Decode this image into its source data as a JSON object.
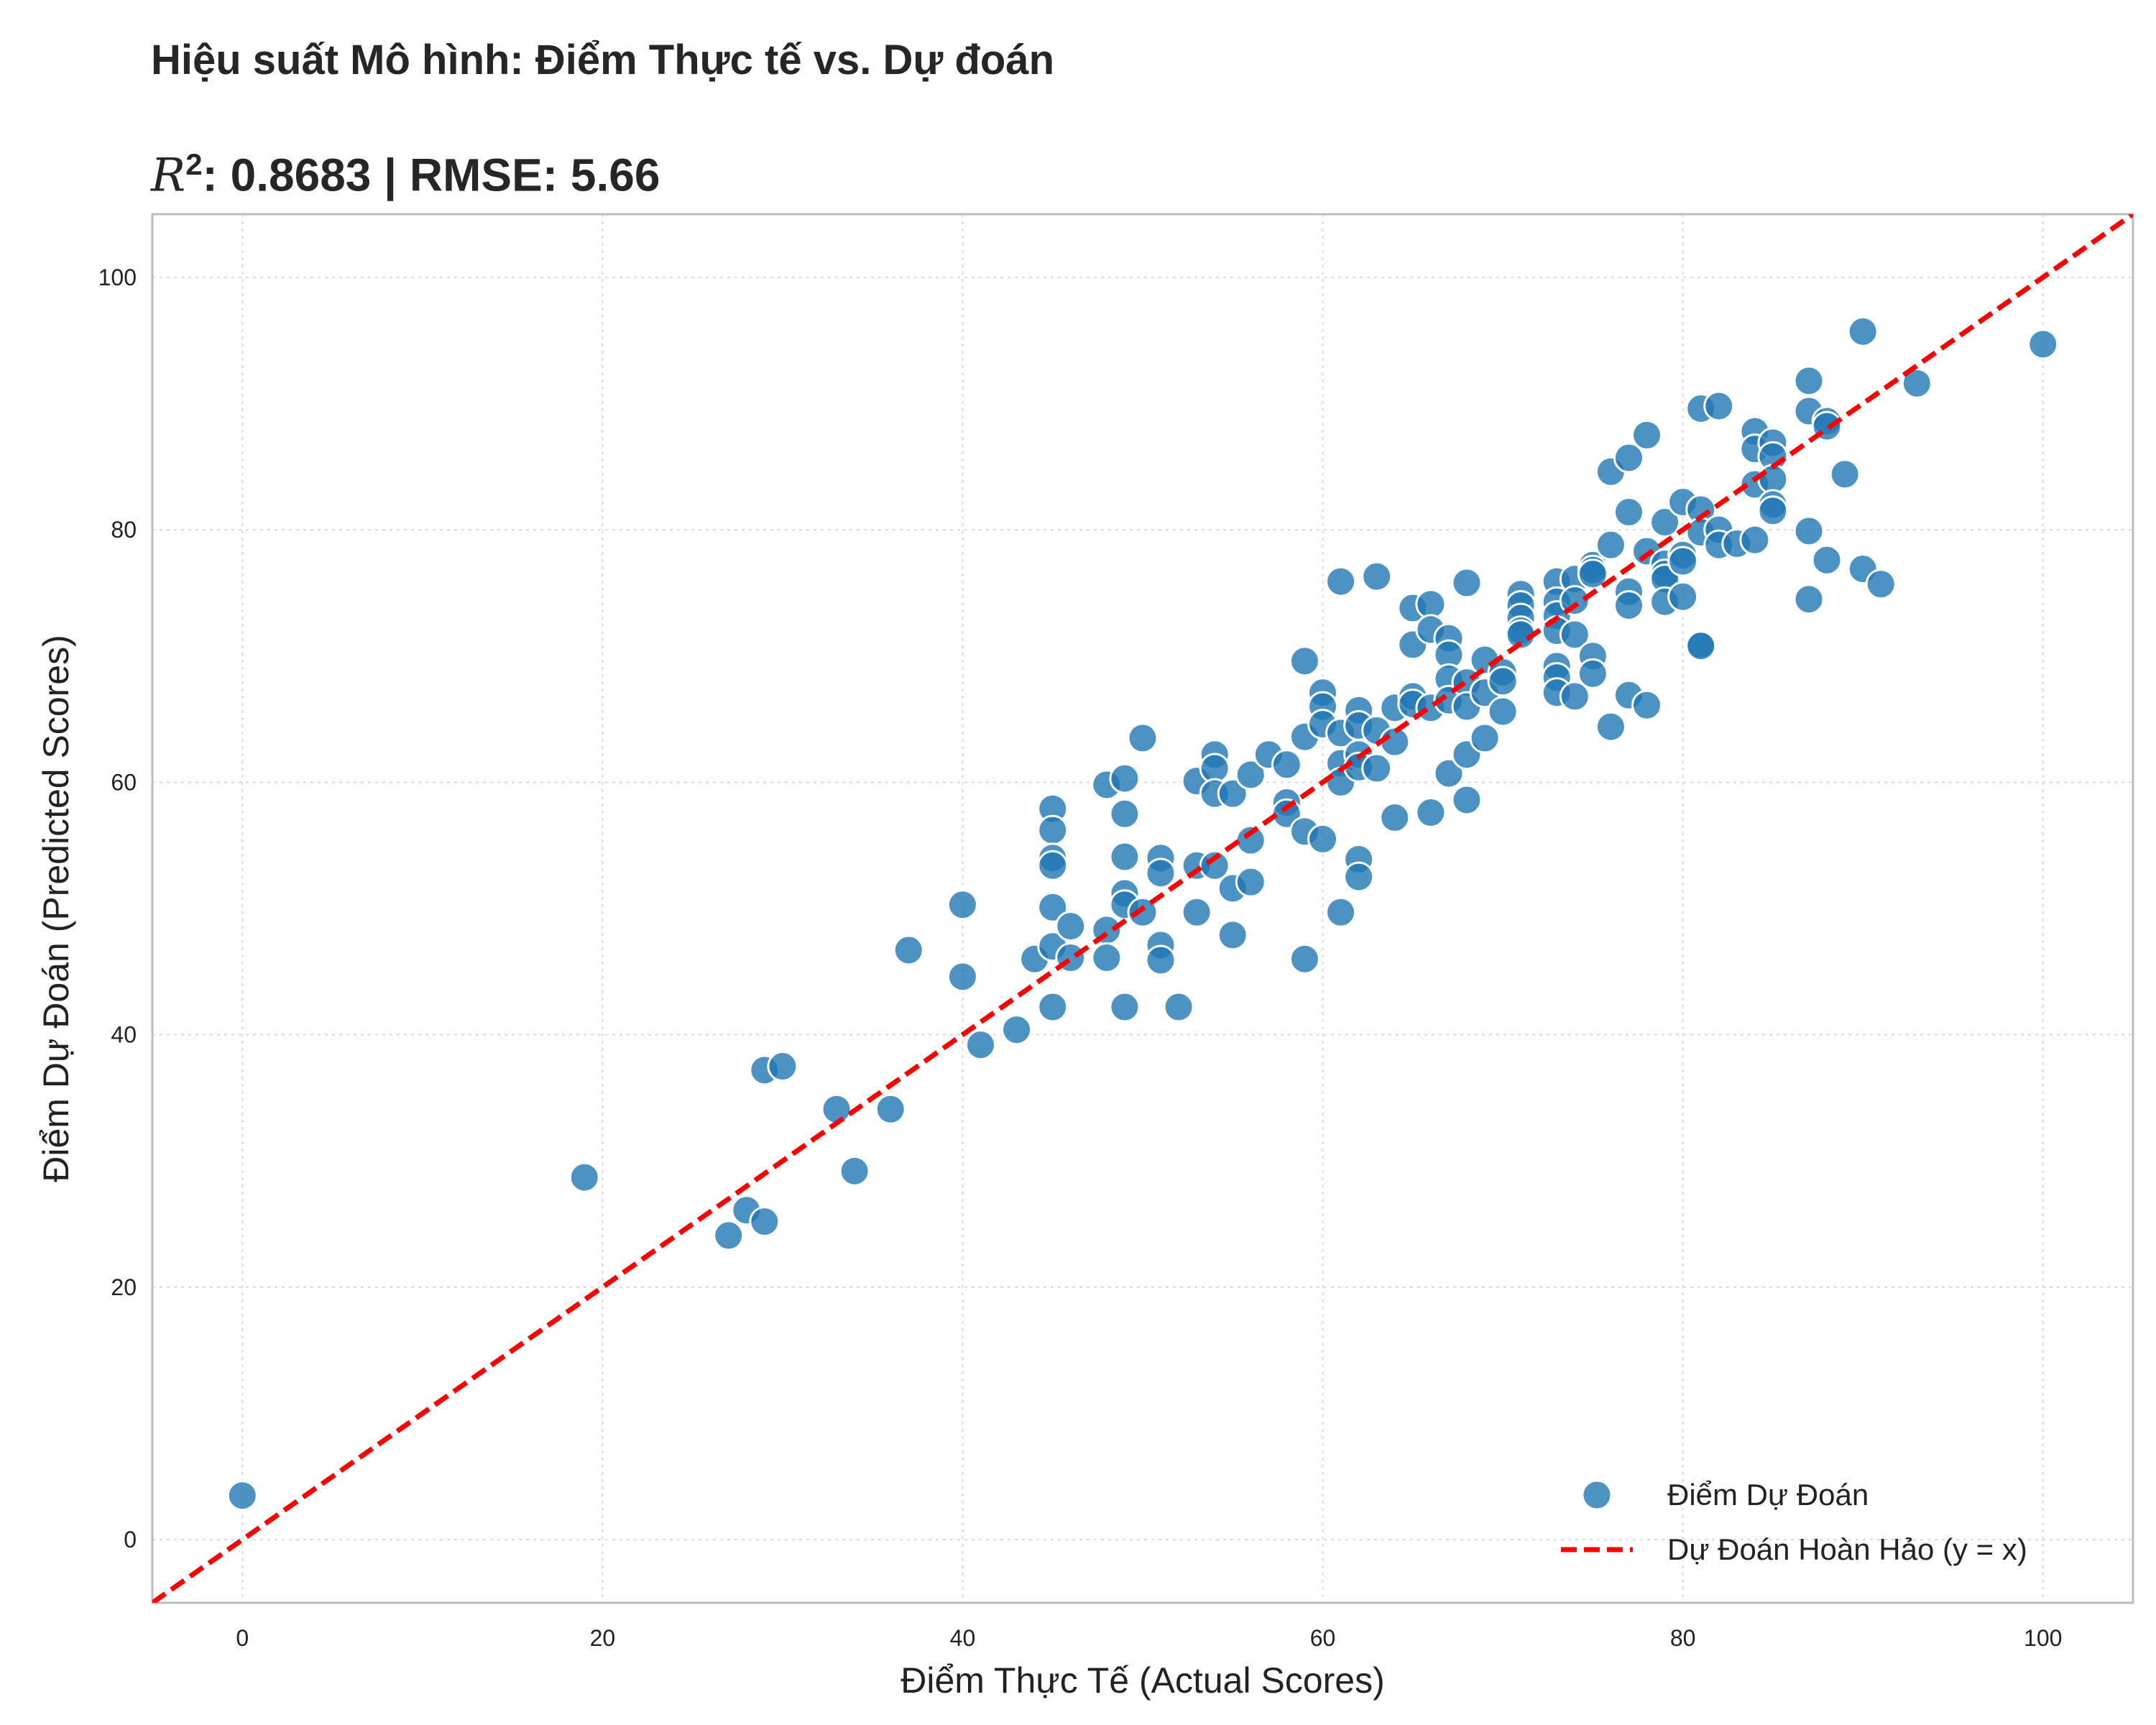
{
  "chart_data": {
    "type": "scatter",
    "suptitle": "Hiệu suất Mô hình: Điểm Thực tế vs. Dự đoán",
    "title_r2_symbol": "R",
    "title_r2_exp": "2",
    "title_rest": ": 0.8683 | RMSE: 5.66",
    "xlabel": "Điểm Thực Tế (Actual Scores)",
    "ylabel": "Điểm Dự Đoán (Predicted Scores)",
    "xlim": [
      -5,
      105
    ],
    "ylim": [
      -5,
      105
    ],
    "xticks": [
      0,
      20,
      40,
      60,
      80,
      100
    ],
    "yticks": [
      0,
      20,
      40,
      60,
      80,
      100
    ],
    "grid": true,
    "legend_position": "lower-right",
    "colors": {
      "points": "#1f77b4",
      "reference_line": "#ff0000"
    },
    "reference_line": {
      "name": "Dự Đoán Hoàn Hảo (y = x)",
      "style": "dashed",
      "points": [
        [
          -5,
          -5
        ],
        [
          105,
          105
        ]
      ]
    },
    "series": [
      {
        "name": "Điểm Dự Đoán",
        "points": [
          [
            0,
            3.5
          ],
          [
            19,
            28.7
          ],
          [
            27,
            24.1
          ],
          [
            28,
            26.1
          ],
          [
            29,
            25.2
          ],
          [
            29,
            37.2
          ],
          [
            30,
            37.5
          ],
          [
            33,
            34.1
          ],
          [
            34,
            29.2
          ],
          [
            36,
            34.1
          ],
          [
            37,
            46.7
          ],
          [
            40,
            50.3
          ],
          [
            40,
            44.6
          ],
          [
            41,
            39.2
          ],
          [
            43,
            40.4
          ],
          [
            44,
            46.0
          ],
          [
            45,
            57.9
          ],
          [
            45,
            56.2
          ],
          [
            45,
            54.0
          ],
          [
            45,
            53.4
          ],
          [
            45,
            50.1
          ],
          [
            45,
            47.0
          ],
          [
            45,
            42.2
          ],
          [
            46,
            48.6
          ],
          [
            46,
            46.1
          ],
          [
            48,
            59.8
          ],
          [
            48,
            48.3
          ],
          [
            48,
            46.1
          ],
          [
            49,
            60.3
          ],
          [
            49,
            57.5
          ],
          [
            49,
            54.1
          ],
          [
            49,
            51.2
          ],
          [
            49,
            50.3
          ],
          [
            49,
            42.2
          ],
          [
            50,
            63.5
          ],
          [
            50,
            49.7
          ],
          [
            51,
            54.0
          ],
          [
            51,
            52.8
          ],
          [
            51,
            47.1
          ],
          [
            51,
            45.9
          ],
          [
            52,
            42.2
          ],
          [
            53,
            60.1
          ],
          [
            53,
            53.4
          ],
          [
            53,
            49.7
          ],
          [
            54,
            62.2
          ],
          [
            54,
            61.1
          ],
          [
            54,
            59.1
          ],
          [
            54,
            53.4
          ],
          [
            55,
            59.1
          ],
          [
            55,
            51.6
          ],
          [
            55,
            47.9
          ],
          [
            56,
            60.6
          ],
          [
            56,
            55.4
          ],
          [
            56,
            52.1
          ],
          [
            57,
            62.2
          ],
          [
            58,
            61.4
          ],
          [
            58,
            58.4
          ],
          [
            58,
            57.5
          ],
          [
            59,
            69.6
          ],
          [
            59,
            63.6
          ],
          [
            59,
            56.1
          ],
          [
            59,
            46.0
          ],
          [
            60,
            67.1
          ],
          [
            60,
            66.0
          ],
          [
            60,
            64.6
          ],
          [
            60,
            55.5
          ],
          [
            61,
            75.9
          ],
          [
            61,
            63.9
          ],
          [
            61,
            61.5
          ],
          [
            61,
            60.0
          ],
          [
            61,
            49.7
          ],
          [
            62,
            65.7
          ],
          [
            62,
            64.5
          ],
          [
            62,
            62.2
          ],
          [
            62,
            61.2
          ],
          [
            62,
            53.9
          ],
          [
            62,
            52.5
          ],
          [
            63,
            76.3
          ],
          [
            63,
            64.1
          ],
          [
            63,
            61.1
          ],
          [
            64,
            65.9
          ],
          [
            64,
            63.2
          ],
          [
            64,
            57.2
          ],
          [
            65,
            73.8
          ],
          [
            65,
            70.9
          ],
          [
            65,
            66.8
          ],
          [
            65,
            66.2
          ],
          [
            66,
            74.1
          ],
          [
            66,
            72.1
          ],
          [
            66,
            65.9
          ],
          [
            66,
            57.6
          ],
          [
            67,
            71.4
          ],
          [
            67,
            70.1
          ],
          [
            67,
            68.2
          ],
          [
            67,
            66.5
          ],
          [
            67,
            60.7
          ],
          [
            68,
            75.8
          ],
          [
            68,
            67.9
          ],
          [
            68,
            66.0
          ],
          [
            68,
            62.2
          ],
          [
            68,
            58.6
          ],
          [
            69,
            69.7
          ],
          [
            69,
            67.1
          ],
          [
            69,
            63.5
          ],
          [
            70,
            68.7
          ],
          [
            70,
            68.0
          ],
          [
            70,
            65.6
          ],
          [
            71,
            74.9
          ],
          [
            71,
            74.0
          ],
          [
            71,
            73.0
          ],
          [
            71,
            72.0
          ],
          [
            71,
            71.7
          ],
          [
            73,
            75.9
          ],
          [
            73,
            74.3
          ],
          [
            73,
            73.2
          ],
          [
            73,
            72.0
          ],
          [
            73,
            69.2
          ],
          [
            73,
            68.3
          ],
          [
            73,
            67.1
          ],
          [
            74,
            76.1
          ],
          [
            74,
            74.4
          ],
          [
            74,
            71.7
          ],
          [
            74,
            66.8
          ],
          [
            75,
            77.2
          ],
          [
            75,
            76.8
          ],
          [
            75,
            76.5
          ],
          [
            75,
            70.0
          ],
          [
            75,
            68.6
          ],
          [
            76,
            84.6
          ],
          [
            76,
            78.8
          ],
          [
            76,
            64.4
          ],
          [
            77,
            85.7
          ],
          [
            77,
            81.4
          ],
          [
            77,
            75.1
          ],
          [
            77,
            74.0
          ],
          [
            77,
            66.9
          ],
          [
            78,
            87.5
          ],
          [
            78,
            78.3
          ],
          [
            78,
            66.1
          ],
          [
            79,
            80.6
          ],
          [
            79,
            77.3
          ],
          [
            79,
            76.5
          ],
          [
            79,
            76.1
          ],
          [
            79,
            74.3
          ],
          [
            80,
            82.2
          ],
          [
            80,
            78.0
          ],
          [
            80,
            77.5
          ],
          [
            80,
            74.7
          ],
          [
            81,
            89.6
          ],
          [
            81,
            81.6
          ],
          [
            81,
            79.8
          ],
          [
            81,
            70.9
          ],
          [
            81,
            70.8
          ],
          [
            82,
            89.8
          ],
          [
            82,
            80.0
          ],
          [
            82,
            78.8
          ],
          [
            83,
            78.9
          ],
          [
            84,
            87.8
          ],
          [
            84,
            86.4
          ],
          [
            84,
            83.6
          ],
          [
            84,
            79.2
          ],
          [
            85,
            86.9
          ],
          [
            85,
            85.8
          ],
          [
            85,
            84.0
          ],
          [
            85,
            82.0
          ],
          [
            85,
            81.5
          ],
          [
            87,
            91.8
          ],
          [
            87,
            89.4
          ],
          [
            87,
            79.9
          ],
          [
            87,
            74.5
          ],
          [
            88,
            88.6
          ],
          [
            88,
            88.2
          ],
          [
            88,
            77.6
          ],
          [
            89,
            84.4
          ],
          [
            90,
            95.7
          ],
          [
            90,
            76.9
          ],
          [
            91,
            75.7
          ],
          [
            93,
            91.6
          ],
          [
            100,
            94.7
          ]
        ]
      }
    ]
  }
}
